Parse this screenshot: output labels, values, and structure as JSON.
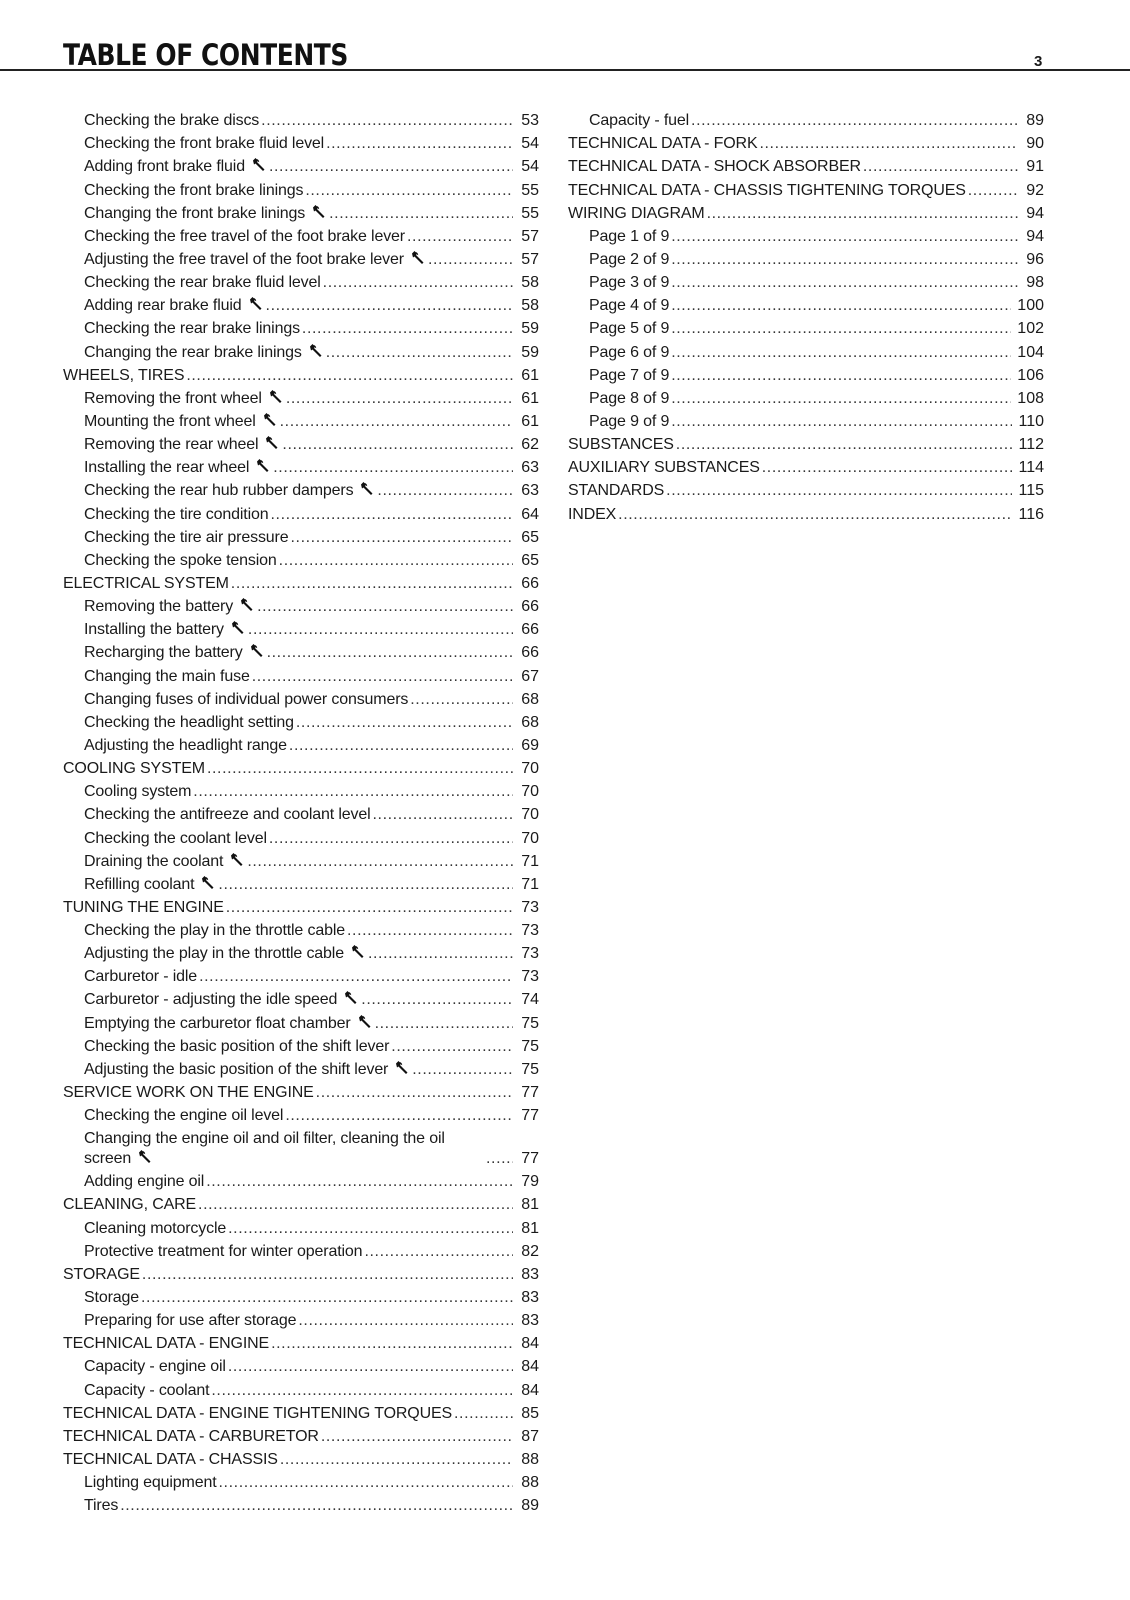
{
  "header": {
    "title": "TABLE OF CONTENTS",
    "page_number": "3"
  },
  "icons": {
    "wrench": "wrench-icon"
  },
  "left": [
    {
      "level": 1,
      "text": "Checking the brake discs",
      "page": "53"
    },
    {
      "level": 1,
      "text": "Checking the front brake fluid level",
      "page": "54"
    },
    {
      "level": 1,
      "text": "Adding front brake fluid",
      "wrench": true,
      "page": "54"
    },
    {
      "level": 1,
      "text": "Checking the front brake linings",
      "page": "55"
    },
    {
      "level": 1,
      "text": "Changing the front brake linings",
      "wrench": true,
      "page": "55"
    },
    {
      "level": 1,
      "text": "Checking the free travel of the foot brake lever",
      "page": "57"
    },
    {
      "level": 1,
      "text": "Adjusting the free travel of the foot brake lever",
      "wrench": true,
      "page": "57"
    },
    {
      "level": 1,
      "text": "Checking the rear brake fluid level",
      "page": "58"
    },
    {
      "level": 1,
      "text": "Adding rear brake fluid",
      "wrench": true,
      "page": "58"
    },
    {
      "level": 1,
      "text": "Checking the rear brake linings",
      "page": "59"
    },
    {
      "level": 1,
      "text": "Changing the rear brake linings",
      "wrench": true,
      "page": "59"
    },
    {
      "level": 0,
      "text": "WHEELS, TIRES",
      "page": "61"
    },
    {
      "level": 1,
      "text": "Removing the front wheel",
      "wrench": true,
      "page": "61"
    },
    {
      "level": 1,
      "text": "Mounting the front wheel",
      "wrench": true,
      "page": "61"
    },
    {
      "level": 1,
      "text": "Removing the rear wheel",
      "wrench": true,
      "page": "62"
    },
    {
      "level": 1,
      "text": "Installing the rear wheel",
      "wrench": true,
      "page": "63"
    },
    {
      "level": 1,
      "text": "Checking the rear hub rubber dampers",
      "wrench": true,
      "page": "63"
    },
    {
      "level": 1,
      "text": "Checking the tire condition",
      "page": "64"
    },
    {
      "level": 1,
      "text": "Checking the tire air pressure",
      "page": "65"
    },
    {
      "level": 1,
      "text": "Checking the spoke tension",
      "page": "65"
    },
    {
      "level": 0,
      "text": "ELECTRICAL SYSTEM",
      "page": "66"
    },
    {
      "level": 1,
      "text": "Removing the battery",
      "wrench": true,
      "page": "66"
    },
    {
      "level": 1,
      "text": "Installing the battery",
      "wrench": true,
      "page": "66"
    },
    {
      "level": 1,
      "text": "Recharging the battery",
      "wrench": true,
      "page": "66"
    },
    {
      "level": 1,
      "text": "Changing the main fuse",
      "page": "67"
    },
    {
      "level": 1,
      "text": "Changing fuses of individual power consumers",
      "page": "68"
    },
    {
      "level": 1,
      "text": "Checking the headlight setting",
      "page": "68"
    },
    {
      "level": 1,
      "text": "Adjusting the headlight range",
      "page": "69"
    },
    {
      "level": 0,
      "text": "COOLING SYSTEM",
      "page": "70"
    },
    {
      "level": 1,
      "text": "Cooling system",
      "page": "70"
    },
    {
      "level": 1,
      "text": "Checking the antifreeze and coolant level",
      "page": "70"
    },
    {
      "level": 1,
      "text": "Checking the coolant level",
      "page": "70"
    },
    {
      "level": 1,
      "text": "Draining the coolant",
      "wrench": true,
      "page": "71"
    },
    {
      "level": 1,
      "text": "Refilling coolant",
      "wrench": true,
      "page": "71"
    },
    {
      "level": 0,
      "text": "TUNING THE ENGINE",
      "page": "73"
    },
    {
      "level": 1,
      "text": "Checking the play in the throttle cable",
      "page": "73"
    },
    {
      "level": 1,
      "text": "Adjusting the play in the throttle cable",
      "wrench": true,
      "page": "73"
    },
    {
      "level": 1,
      "text": "Carburetor - idle",
      "page": "73"
    },
    {
      "level": 1,
      "text": "Carburetor - adjusting the idle speed",
      "wrench": true,
      "page": "74"
    },
    {
      "level": 1,
      "text": "Emptying the carburetor float chamber",
      "wrench": true,
      "page": "75"
    },
    {
      "level": 1,
      "text": "Checking the basic position of the shift lever",
      "page": "75"
    },
    {
      "level": 1,
      "text": "Adjusting the basic position of the shift lever",
      "wrench": true,
      "page": "75"
    },
    {
      "level": 0,
      "text": "SERVICE WORK ON THE ENGINE",
      "page": "77"
    },
    {
      "level": 1,
      "text": "Checking the engine oil level",
      "page": "77"
    },
    {
      "level": 1,
      "text": "Changing the engine oil and oil filter, cleaning the oil screen",
      "wrench": true,
      "wrap": true,
      "page": "77"
    },
    {
      "level": 1,
      "text": "Adding engine oil",
      "page": "79"
    },
    {
      "level": 0,
      "text": "CLEANING, CARE",
      "page": "81"
    },
    {
      "level": 1,
      "text": "Cleaning motorcycle",
      "page": "81"
    },
    {
      "level": 1,
      "text": "Protective treatment for winter operation",
      "page": "82"
    },
    {
      "level": 0,
      "text": "STORAGE",
      "page": "83"
    },
    {
      "level": 1,
      "text": "Storage",
      "page": "83"
    },
    {
      "level": 1,
      "text": "Preparing for use after storage",
      "page": "83"
    },
    {
      "level": 0,
      "text": "TECHNICAL DATA - ENGINE",
      "page": "84"
    },
    {
      "level": 1,
      "text": "Capacity - engine oil",
      "page": "84"
    },
    {
      "level": 1,
      "text": "Capacity - coolant",
      "page": "84"
    },
    {
      "level": 0,
      "text": "TECHNICAL DATA - ENGINE TIGHTENING TORQUES",
      "page": "85"
    },
    {
      "level": 0,
      "text": "TECHNICAL DATA - CARBURETOR",
      "page": "87"
    },
    {
      "level": 0,
      "text": "TECHNICAL DATA - CHASSIS",
      "page": "88"
    },
    {
      "level": 1,
      "text": "Lighting equipment",
      "page": "88"
    },
    {
      "level": 1,
      "text": "Tires",
      "page": "89"
    }
  ],
  "right": [
    {
      "level": 1,
      "text": "Capacity - fuel",
      "page": "89"
    },
    {
      "level": 0,
      "text": "TECHNICAL DATA - FORK",
      "page": "90"
    },
    {
      "level": 0,
      "text": "TECHNICAL DATA - SHOCK ABSORBER",
      "page": "91"
    },
    {
      "level": 0,
      "text": "TECHNICAL DATA - CHASSIS TIGHTENING TORQUES",
      "page": "92"
    },
    {
      "level": 0,
      "text": "WIRING DIAGRAM",
      "page": "94"
    },
    {
      "level": 1,
      "text": "Page 1 of 9",
      "page": "94"
    },
    {
      "level": 1,
      "text": "Page 2 of 9",
      "page": "96"
    },
    {
      "level": 1,
      "text": "Page 3 of 9",
      "page": "98"
    },
    {
      "level": 1,
      "text": "Page 4 of 9",
      "page": "100"
    },
    {
      "level": 1,
      "text": "Page 5 of 9",
      "page": "102"
    },
    {
      "level": 1,
      "text": "Page 6 of 9",
      "page": "104"
    },
    {
      "level": 1,
      "text": "Page 7 of 9",
      "page": "106"
    },
    {
      "level": 1,
      "text": "Page 8 of 9",
      "page": "108"
    },
    {
      "level": 1,
      "text": "Page 9 of 9",
      "page": "110"
    },
    {
      "level": 0,
      "text": "SUBSTANCES",
      "page": "112"
    },
    {
      "level": 0,
      "text": "AUXILIARY SUBSTANCES",
      "page": "114"
    },
    {
      "level": 0,
      "text": "STANDARDS",
      "page": "115"
    },
    {
      "level": 0,
      "text": "INDEX",
      "page": "116"
    }
  ]
}
